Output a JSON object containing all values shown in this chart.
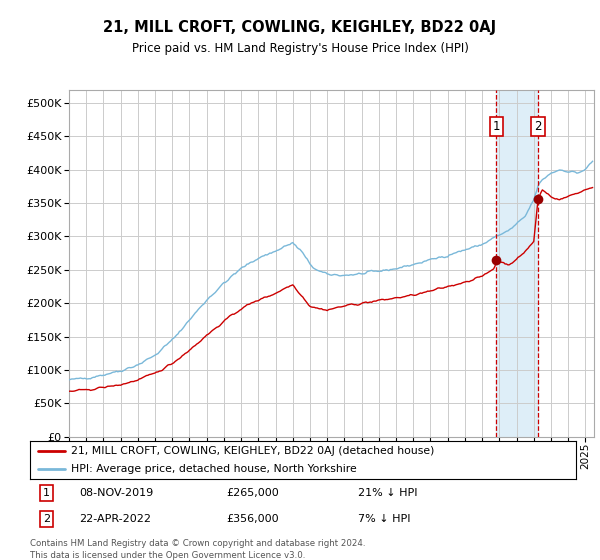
{
  "title": "21, MILL CROFT, COWLING, KEIGHLEY, BD22 0AJ",
  "subtitle": "Price paid vs. HM Land Registry's House Price Index (HPI)",
  "legend_line1": "21, MILL CROFT, COWLING, KEIGHLEY, BD22 0AJ (detached house)",
  "legend_line2": "HPI: Average price, detached house, North Yorkshire",
  "transaction1_date": "08-NOV-2019",
  "transaction1_price": 265000,
  "transaction1_label": "21% ↓ HPI",
  "transaction2_date": "22-APR-2022",
  "transaction2_price": 356000,
  "transaction2_label": "7% ↓ HPI",
  "footer": "Contains HM Land Registry data © Crown copyright and database right 2024.\nThis data is licensed under the Open Government Licence v3.0.",
  "hpi_color": "#7ab8d9",
  "property_color": "#cc0000",
  "highlight_color": "#deeef8",
  "vline_color": "#cc0000",
  "dot_color": "#990000",
  "grid_color": "#cccccc",
  "background_color": "#ffffff",
  "ylim": [
    0,
    520000
  ],
  "yticks": [
    0,
    50000,
    100000,
    150000,
    200000,
    250000,
    300000,
    350000,
    400000,
    450000,
    500000
  ]
}
